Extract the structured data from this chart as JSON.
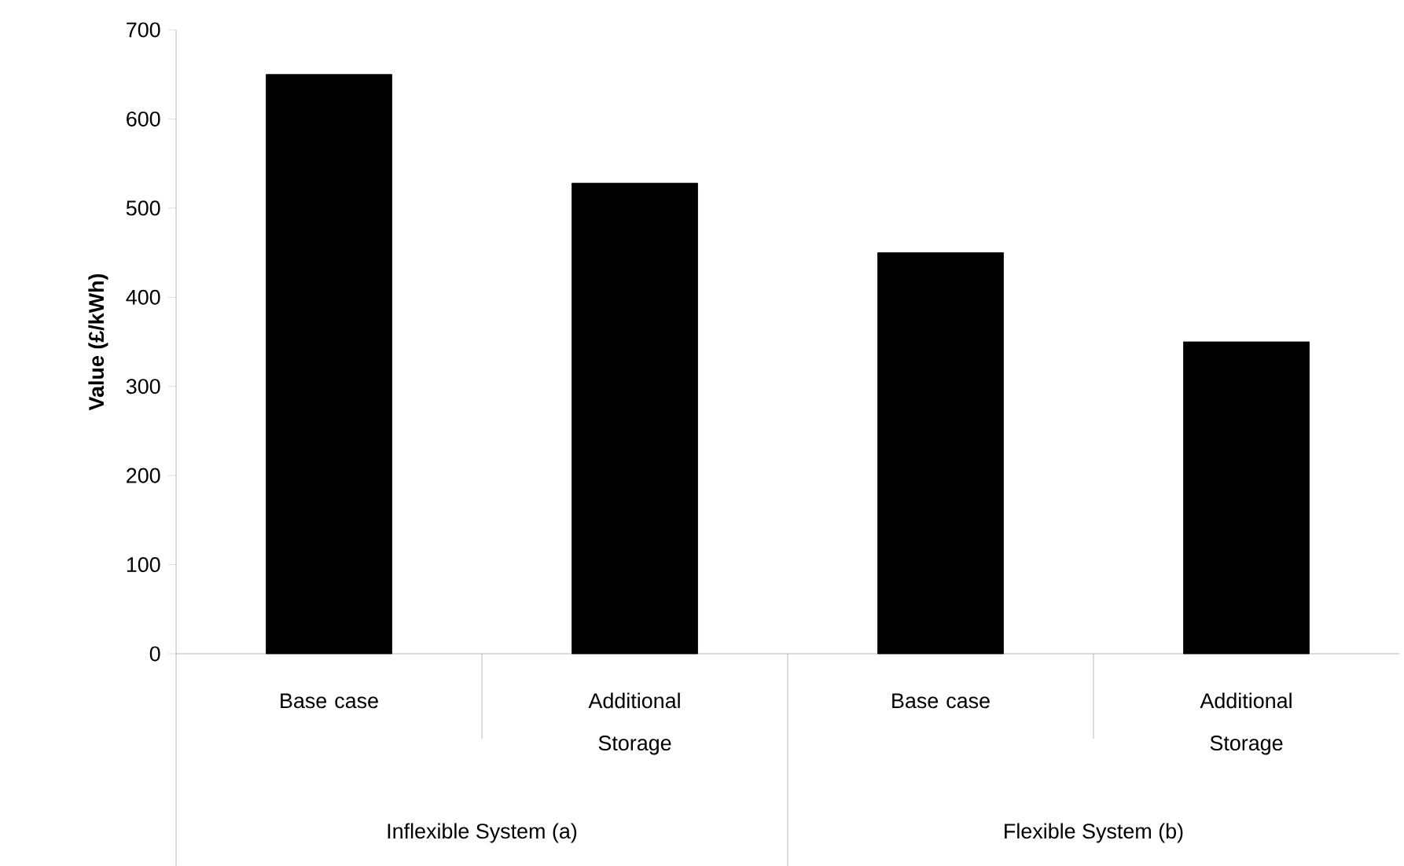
{
  "chart_data": {
    "type": "bar",
    "ylabel": "Value (£/kWh)",
    "categories": [
      "Base case",
      "Additional Storage",
      "Base case",
      "Additional Storage"
    ],
    "values": [
      650,
      528,
      450,
      350
    ],
    "color": "#000000",
    "ylim": [
      0,
      700
    ],
    "yticks": [
      0,
      100,
      200,
      300,
      400,
      500,
      600,
      700
    ],
    "annotations": [
      "Inflexible System (a)",
      "Flexible System (b)"
    ]
  }
}
